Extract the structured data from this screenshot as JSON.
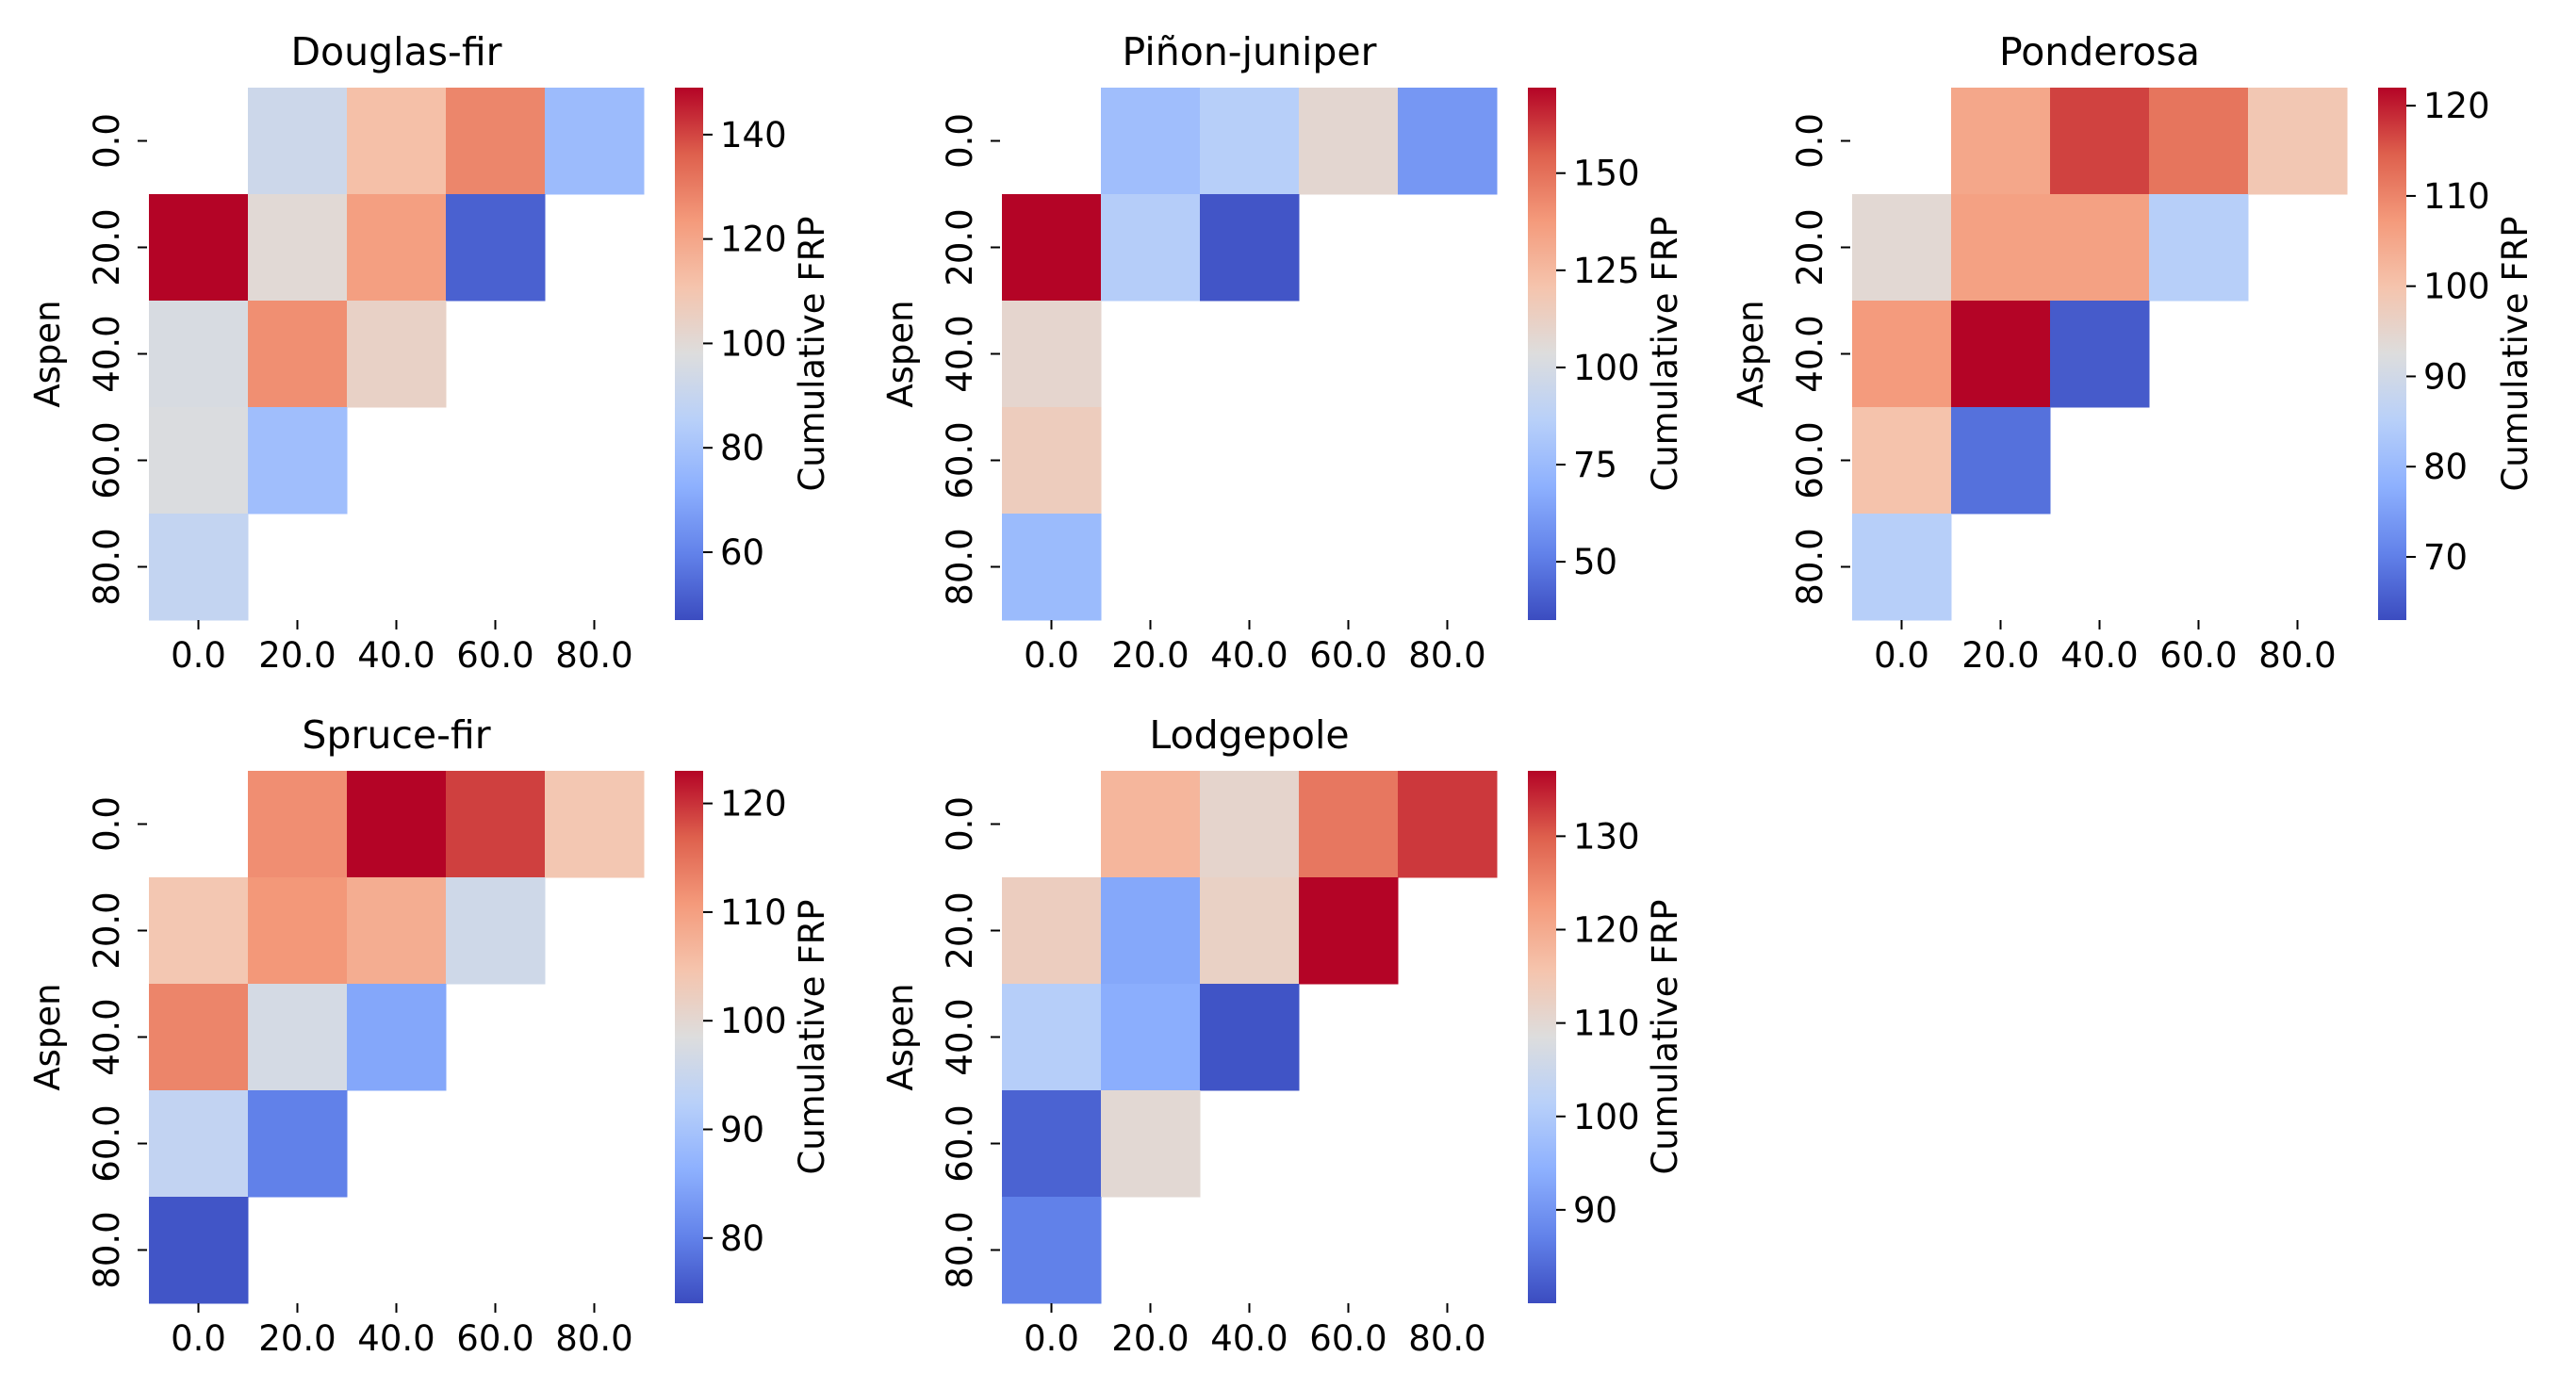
{
  "chart_data": [
    {
      "type": "heatmap",
      "title": "Douglas-fir",
      "ylabel": "Aspen",
      "xticks": [
        "0.0",
        "20.0",
        "40.0",
        "60.0",
        "80.0"
      ],
      "yticks": [
        "0.0",
        "20.0",
        "40.0",
        "60.0",
        "80.0"
      ],
      "colorbar_label": "Cumulative FRP",
      "vmin": 47,
      "vmax": 149,
      "colorbar_ticks": [
        60,
        80,
        100,
        120,
        140
      ],
      "values": [
        [
          null,
          92,
          112,
          128,
          77
        ],
        [
          149,
          100,
          122,
          52,
          null
        ],
        [
          96,
          126,
          104,
          null,
          null
        ],
        [
          97,
          78,
          null,
          null,
          null
        ],
        [
          89,
          null,
          null,
          null,
          null
        ]
      ]
    },
    {
      "type": "heatmap",
      "title": "Piñon-juniper",
      "ylabel": "Aspen",
      "xticks": [
        "0.0",
        "20.0",
        "40.0",
        "60.0",
        "80.0"
      ],
      "yticks": [
        "0.0",
        "20.0",
        "40.0",
        "60.0",
        "80.0"
      ],
      "colorbar_label": "Cumulative FRP",
      "vmin": 35,
      "vmax": 172,
      "colorbar_ticks": [
        50,
        75,
        100,
        125,
        150
      ],
      "values": [
        [
          null,
          77,
          86,
          108,
          60
        ],
        [
          172,
          85,
          38,
          null,
          null
        ],
        [
          109,
          null,
          null,
          null,
          null
        ],
        [
          115,
          null,
          null,
          null,
          null
        ],
        [
          75,
          null,
          null,
          null,
          null
        ]
      ]
    },
    {
      "type": "heatmap",
      "title": "Ponderosa",
      "ylabel": "Aspen",
      "xticks": [
        "0.0",
        "20.0",
        "40.0",
        "60.0",
        "80.0"
      ],
      "yticks": [
        "0.0",
        "20.0",
        "40.0",
        "60.0",
        "80.0"
      ],
      "colorbar_label": "Cumulative FRP",
      "vmin": 63,
      "vmax": 122,
      "colorbar_ticks": [
        70,
        80,
        90,
        100,
        110,
        120
      ],
      "values": [
        [
          null,
          105,
          117,
          112,
          99
        ],
        [
          94,
          106,
          106,
          85,
          null
        ],
        [
          107,
          122,
          65,
          null,
          null
        ],
        [
          100,
          68,
          null,
          null,
          null
        ],
        [
          85,
          null,
          null,
          null,
          null
        ]
      ]
    },
    {
      "type": "heatmap",
      "title": "Spruce-fir",
      "ylabel": "Aspen",
      "xticks": [
        "0.0",
        "20.0",
        "40.0",
        "60.0",
        "80.0"
      ],
      "yticks": [
        "0.0",
        "20.0",
        "40.0",
        "60.0",
        "80.0"
      ],
      "colorbar_label": "Cumulative FRP",
      "vmin": 74,
      "vmax": 123,
      "colorbar_ticks": [
        80,
        90,
        100,
        110,
        120
      ],
      "values": [
        [
          null,
          112,
          123,
          119,
          104
        ],
        [
          104,
          111,
          108,
          96,
          null
        ],
        [
          113,
          97,
          85,
          null,
          null
        ],
        [
          94,
          80,
          null,
          null,
          null
        ],
        [
          75,
          null,
          null,
          null,
          null
        ]
      ]
    },
    {
      "type": "heatmap",
      "title": "Lodgepole",
      "ylabel": "Aspen",
      "xticks": [
        "0.0",
        "20.0",
        "40.0",
        "60.0",
        "80.0"
      ],
      "yticks": [
        "0.0",
        "20.0",
        "40.0",
        "60.0",
        "80.0"
      ],
      "colorbar_label": "Cumulative FRP",
      "vmin": 80,
      "vmax": 137,
      "colorbar_ticks": [
        90,
        100,
        110,
        120,
        130
      ],
      "values": [
        [
          null,
          118,
          111,
          127,
          133
        ],
        [
          113,
          93,
          112,
          137,
          null
        ],
        [
          101,
          94,
          81,
          null,
          null
        ],
        [
          83,
          110,
          null,
          null,
          null
        ],
        [
          87,
          null,
          null,
          null,
          null
        ]
      ]
    }
  ]
}
